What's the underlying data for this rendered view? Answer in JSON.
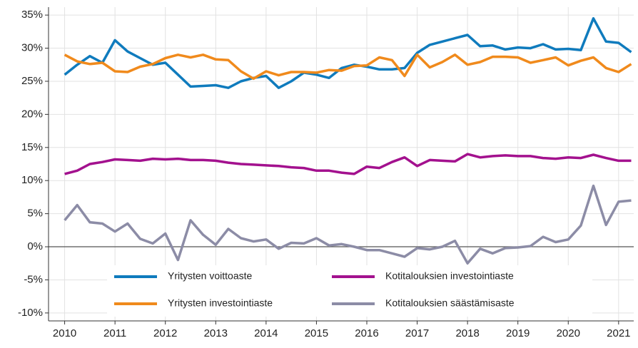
{
  "chart_data": {
    "type": "line",
    "x": [
      2010,
      2010.25,
      2010.5,
      2010.75,
      2011,
      2011.25,
      2011.5,
      2011.75,
      2012,
      2012.25,
      2012.5,
      2012.75,
      2013,
      2013.25,
      2013.5,
      2013.75,
      2014,
      2014.25,
      2014.5,
      2014.75,
      2015,
      2015.25,
      2015.5,
      2015.75,
      2016,
      2016.25,
      2016.5,
      2016.75,
      2017,
      2017.25,
      2017.5,
      2017.75,
      2018,
      2018.25,
      2018.5,
      2018.75,
      2019,
      2019.25,
      2019.5,
      2019.75,
      2020,
      2020.25,
      2020.5,
      2020.75,
      2021,
      2021.25
    ],
    "series": [
      {
        "name": "Yritysten voittoaste",
        "color": "#0f7bbd",
        "values": [
          26,
          27.5,
          28.8,
          27.8,
          31.2,
          29.5,
          28.5,
          27.5,
          27.8,
          26,
          24.2,
          24.3,
          24.4,
          24,
          25,
          25.5,
          25.8,
          24,
          25,
          26.3,
          26,
          25.5,
          27,
          27.5,
          27.2,
          26.8,
          26.8,
          27,
          29.3,
          30.5,
          31,
          31.5,
          32,
          30.3,
          30.4,
          29.8,
          30.1,
          30,
          30.6,
          29.8,
          29.9,
          29.7,
          34.5,
          31,
          30.8,
          29.4
        ]
      },
      {
        "name": "Kotitalouksien investointiaste",
        "color": "#a3118e",
        "values": [
          11,
          11.5,
          12.5,
          12.8,
          13.2,
          13.1,
          13,
          13.3,
          13.2,
          13.3,
          13.1,
          13.1,
          13,
          12.7,
          12.5,
          12.4,
          12.3,
          12.2,
          12,
          11.9,
          11.5,
          11.5,
          11.2,
          11,
          12.1,
          11.9,
          12.8,
          13.5,
          12.2,
          13.1,
          13,
          12.9,
          14,
          13.5,
          13.7,
          13.8,
          13.7,
          13.7,
          13.4,
          13.3,
          13.5,
          13.4,
          13.9,
          13.4,
          13,
          13
        ]
      },
      {
        "name": "Yritysten investointiaste",
        "color": "#f08a1c",
        "values": [
          29,
          28,
          27.6,
          27.8,
          26.5,
          26.4,
          27.2,
          27.6,
          28.5,
          29,
          28.6,
          29,
          28.3,
          28.2,
          26.5,
          25.4,
          26.5,
          25.9,
          26.4,
          26.4,
          26.3,
          26.7,
          26.6,
          27.3,
          27.4,
          28.6,
          28.2,
          25.8,
          29,
          27.1,
          27.9,
          29,
          27.5,
          27.9,
          28.7,
          28.7,
          28.6,
          27.8,
          28.2,
          28.6,
          27.4,
          28.1,
          28.6,
          27,
          26.4,
          27.6
        ]
      },
      {
        "name": "Kotitalouksien säästämisaste",
        "color": "#8c8ca6",
        "values": [
          4,
          6.3,
          3.7,
          3.5,
          2.3,
          3.5,
          1.2,
          0.5,
          2,
          -2,
          4,
          1.8,
          0.3,
          2.7,
          1.3,
          0.8,
          1.1,
          -0.3,
          0.6,
          0.5,
          1.3,
          0.2,
          0.4,
          0,
          -0.5,
          -0.5,
          -1,
          -1.5,
          -0.2,
          -0.4,
          0,
          0.9,
          -2.5,
          -0.3,
          -1,
          -0.2,
          -0.1,
          0.1,
          1.5,
          0.7,
          1.1,
          3.2,
          9.2,
          3.3,
          6.8,
          7
        ]
      }
    ],
    "xlim": [
      2009.68,
      2021.3
    ],
    "xticks": [
      2010,
      2011,
      2012,
      2013,
      2014,
      2015,
      2016,
      2017,
      2018,
      2019,
      2020,
      2021
    ],
    "ylim": [
      -11.2,
      36.2
    ],
    "yticks": [
      {
        "value": -10,
        "label": "-10%"
      },
      {
        "value": -5,
        "label": "-5%"
      },
      {
        "value": 0,
        "label": "0%"
      },
      {
        "value": 5,
        "label": "5%"
      },
      {
        "value": 10,
        "label": "10%"
      },
      {
        "value": 15,
        "label": "15%"
      },
      {
        "value": 20,
        "label": "20%"
      },
      {
        "value": 25,
        "label": "25%"
      },
      {
        "value": 30,
        "label": "30%"
      },
      {
        "value": 35,
        "label": "35%"
      }
    ],
    "grid": true,
    "legend": "bottom"
  }
}
